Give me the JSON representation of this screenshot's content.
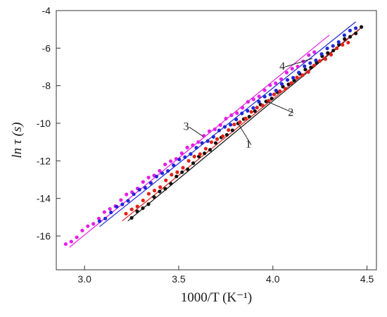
{
  "chart_data": {
    "type": "scatter",
    "title": "",
    "xlabel": "1000/T (K⁻¹)",
    "ylabel": "ln τ (s)",
    "xlim": [
      2.85,
      4.55
    ],
    "ylim": [
      -17.8,
      -4.0
    ],
    "x_ticks": [
      "3.0",
      "3.5",
      "4.0",
      "4.5"
    ],
    "y_ticks": [
      "-4",
      "-6",
      "-8",
      "-10",
      "-12",
      "-14",
      "-16"
    ],
    "grid": false,
    "series": [
      {
        "name": "1",
        "color": "#111111",
        "fit": {
          "x": [
            3.23,
            4.46
          ],
          "y": [
            -15.2,
            -5.0
          ]
        },
        "points_x_range": [
          3.25,
          4.47
        ],
        "points_count": 42,
        "slope": 8.4
      },
      {
        "name": "2",
        "color": "#e0211b",
        "fit": {
          "x": [
            3.2,
            4.47
          ],
          "y": [
            -15.2,
            -4.9
          ]
        },
        "points_x_range": [
          3.22,
          4.4
        ],
        "points_count": 40,
        "slope": 8.4
      },
      {
        "name": "3",
        "color": "#e61ee6",
        "fit": {
          "x": [
            2.92,
            4.3
          ],
          "y": [
            -16.6,
            -5.3
          ]
        },
        "points_x_range": [
          2.9,
          4.22
        ],
        "points_count": 46,
        "slope": 8.6
      },
      {
        "name": "4",
        "color": "#1f28d6",
        "fit": {
          "x": [
            3.08,
            4.44
          ],
          "y": [
            -15.5,
            -4.6
          ]
        },
        "points_x_range": [
          3.08,
          4.44
        ],
        "points_count": 46,
        "slope": 8.35
      }
    ],
    "annotations": [
      {
        "text": "1",
        "series": "1"
      },
      {
        "text": "2",
        "series": "2"
      },
      {
        "text": "3",
        "series": "3"
      },
      {
        "text": "4",
        "series": "4"
      }
    ]
  }
}
